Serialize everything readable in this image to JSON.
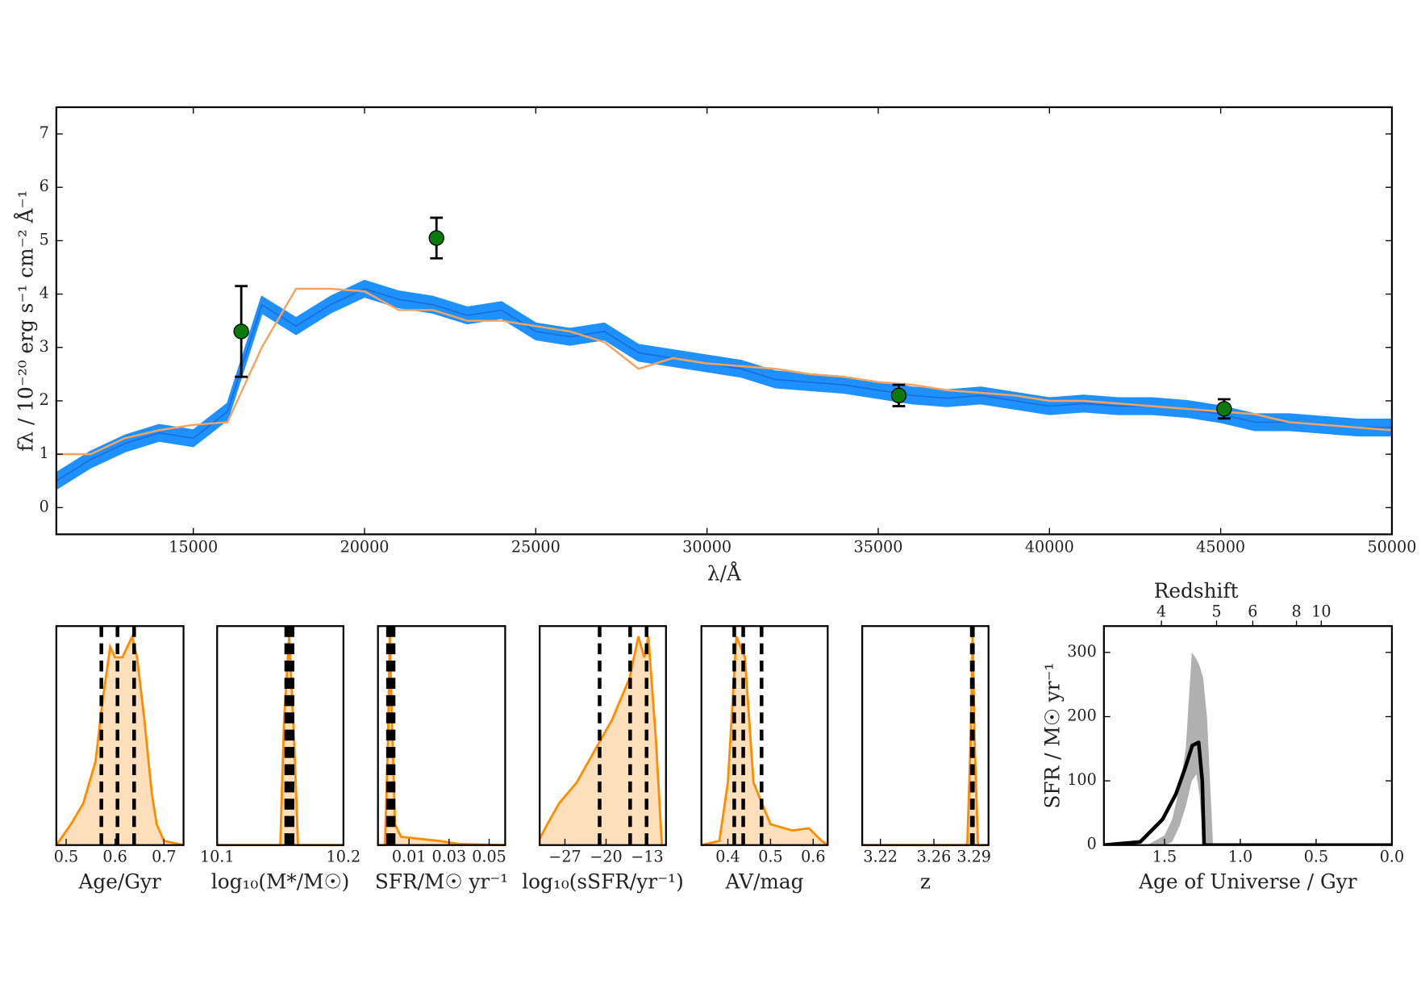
{
  "chart_data": [
    {
      "type": "line",
      "xlabel": "λ/Å",
      "ylabel": "fλ / 10⁻²⁰ erg s⁻¹ cm⁻² Å⁻¹",
      "xlim": [
        11000,
        50000
      ],
      "ylim": [
        -0.5,
        7.5
      ],
      "xticks": [
        15000,
        20000,
        25000,
        30000,
        35000,
        40000,
        45000,
        50000
      ],
      "yticks": [
        0,
        1,
        2,
        3,
        4,
        5,
        6,
        7
      ],
      "series": [
        {
          "type": "line",
          "color": "#1e90ff",
          "x": [
            11000,
            12000,
            13000,
            14000,
            15000,
            16000,
            17000,
            18000,
            19000,
            20000,
            21000,
            22000,
            23000,
            24000,
            25000,
            26000,
            27000,
            28000,
            29000,
            30000,
            31000,
            32000,
            33000,
            34000,
            35000,
            36000,
            37000,
            38000,
            39000,
            40000,
            41000,
            42000,
            43000,
            44000,
            45000,
            46000,
            47000,
            48000,
            49000,
            50000
          ],
          "values": [
            0.5,
            0.9,
            1.2,
            1.4,
            1.3,
            1.8,
            3.8,
            3.4,
            3.8,
            4.1,
            3.9,
            3.8,
            3.6,
            3.7,
            3.3,
            3.2,
            3.3,
            2.9,
            2.8,
            2.7,
            2.6,
            2.4,
            2.35,
            2.3,
            2.2,
            2.1,
            2.05,
            2.1,
            2.0,
            1.9,
            1.95,
            1.9,
            1.9,
            1.85,
            1.75,
            1.6,
            1.6,
            1.55,
            1.5,
            1.5
          ],
          "errors": [
            0.15,
            0.15,
            0.15,
            0.15,
            0.15,
            0.15,
            0.15,
            0.15,
            0.15,
            0.15,
            0.15,
            0.15,
            0.15,
            0.15,
            0.15,
            0.15,
            0.15,
            0.15,
            0.15,
            0.15,
            0.15,
            0.15,
            0.15,
            0.15,
            0.15,
            0.15,
            0.15,
            0.15,
            0.15,
            0.15,
            0.15,
            0.15,
            0.15,
            0.15,
            0.15,
            0.15,
            0.15,
            0.15,
            0.15,
            0.15
          ]
        },
        {
          "type": "line",
          "color": "#f4a460",
          "x": [
            11000,
            12000,
            13000,
            14000,
            15000,
            16000,
            17000,
            18000,
            19000,
            20000,
            21000,
            22000,
            23000,
            24000,
            25000,
            26000,
            27000,
            28000,
            29000,
            30000,
            31000,
            32000,
            33000,
            34000,
            35000,
            36000,
            37000,
            38000,
            39000,
            40000,
            41000,
            42000,
            43000,
            44000,
            45000,
            46000,
            47000,
            48000,
            49000,
            50000
          ],
          "values": [
            1.0,
            1.0,
            1.3,
            1.45,
            1.55,
            1.6,
            3.0,
            4.1,
            4.1,
            4.05,
            3.7,
            3.7,
            3.5,
            3.5,
            3.4,
            3.3,
            3.1,
            2.6,
            2.8,
            2.7,
            2.65,
            2.6,
            2.5,
            2.45,
            2.35,
            2.3,
            2.2,
            2.15,
            2.1,
            2.0,
            2.0,
            1.95,
            1.9,
            1.85,
            1.8,
            1.75,
            1.6,
            1.55,
            1.5,
            1.45
          ]
        },
        {
          "type": "errorbar",
          "color": "#0a7a0a",
          "x": [
            16400,
            22100,
            35600,
            45100
          ],
          "values": [
            3.3,
            5.05,
            2.1,
            1.85
          ],
          "errors": [
            0.85,
            0.38,
            0.2,
            0.18
          ]
        }
      ]
    },
    {
      "type": "area",
      "xlabel": "Age/Gyr",
      "xlim": [
        0.48,
        0.74
      ],
      "ylim": [
        0,
        1.05
      ],
      "xticks": [
        0.5,
        0.6,
        0.7
      ],
      "color": "#ff8c00",
      "x": [
        0.48,
        0.51,
        0.535,
        0.56,
        0.575,
        0.59,
        0.6,
        0.615,
        0.625,
        0.635,
        0.645,
        0.66,
        0.675,
        0.685,
        0.7,
        0.74
      ],
      "values": [
        0,
        0.1,
        0.2,
        0.4,
        0.7,
        0.95,
        0.9,
        0.9,
        0.95,
        1,
        0.9,
        0.6,
        0.25,
        0.1,
        0.02,
        0
      ],
      "vlines": [
        0.572,
        0.605,
        0.639
      ]
    },
    {
      "type": "area",
      "xlabel": "log₁₀(M*/M☉)",
      "xlim": [
        10.1,
        10.2
      ],
      "ylim": [
        0,
        1.05
      ],
      "xticks": [
        10.1,
        10.2
      ],
      "color": "#ff8c00",
      "x": [
        10.1,
        10.15,
        10.153,
        10.157,
        10.161,
        10.164,
        10.2
      ],
      "values": [
        0,
        0,
        0.6,
        1,
        0.5,
        0,
        0
      ],
      "vlines": [
        10.1547,
        10.1568,
        10.1597
      ]
    },
    {
      "type": "area",
      "xlabel": "SFR/M☉ yr⁻¹",
      "xlim": [
        -0.0055,
        0.058
      ],
      "ylim": [
        0,
        1.05
      ],
      "xticks": [
        0.01,
        0.03,
        0.05
      ],
      "color": "#ff8c00",
      "x": [
        -0.0055,
        -0.002,
        -0.0005,
        0.0004,
        0.0015,
        0.003,
        0.006,
        0.015,
        0.025,
        0.035,
        0.058
      ],
      "values": [
        0,
        0,
        0.5,
        1,
        0.6,
        0.1,
        0.04,
        0.03,
        0.02,
        0.005,
        0
      ],
      "vlines": [
        -0.0005,
        0.0009,
        0.0023
      ]
    },
    {
      "type": "area",
      "xlabel": "log₁₀(sSFR/yr⁻¹)",
      "xlim": [
        -31.3,
        -9.8
      ],
      "ylim": [
        0,
        1.05
      ],
      "xticks": [
        {
          "value": -27,
          "label": "−27"
        },
        {
          "value": -20,
          "label": "−20"
        },
        {
          "value": -13,
          "label": "−13"
        }
      ],
      "color": "#ff8c00",
      "x": [
        -31.3,
        -30,
        -28,
        -25,
        -22,
        -19,
        -16,
        -14.5,
        -13.5,
        -12.8,
        -11.5,
        -10.5,
        -9.8
      ],
      "values": [
        0.03,
        0.1,
        0.2,
        0.3,
        0.45,
        0.6,
        0.8,
        1,
        0.9,
        1,
        0.5,
        0,
        0
      ],
      "vlines": [
        -21.1,
        -15.9,
        -13.1
      ]
    },
    {
      "type": "area",
      "xlabel": "AV/mag",
      "xlim": [
        0.338,
        0.634
      ],
      "ylim": [
        0,
        1.05
      ],
      "xticks": [
        0.4,
        0.5,
        0.6
      ],
      "color": "#ff8c00",
      "x": [
        0.338,
        0.38,
        0.4,
        0.42,
        0.44,
        0.46,
        0.5,
        0.55,
        0.59,
        0.62,
        0.634
      ],
      "values": [
        0,
        0.02,
        0.3,
        1,
        0.9,
        0.3,
        0.1,
        0.07,
        0.08,
        0.02,
        0
      ],
      "vlines": [
        0.415,
        0.436,
        0.479
      ]
    },
    {
      "type": "area",
      "xlabel": "z",
      "xlim": [
        3.2064,
        3.3009
      ],
      "ylim": [
        0,
        1.05
      ],
      "xticks": [
        3.22,
        3.26,
        3.29
      ],
      "color": "#ff8c00",
      "x": [
        3.2064,
        3.285,
        3.2875,
        3.289,
        3.2905,
        3.293,
        3.3009
      ],
      "values": [
        0,
        0,
        0.5,
        1,
        0.5,
        0,
        0
      ],
      "vlines": [
        3.2884,
        3.2888,
        3.2892
      ]
    },
    {
      "type": "line",
      "xlabel": "Age of Universe / Gyr",
      "ylabel": "SFR / M☉ yr⁻¹",
      "x2label": "Redshift",
      "xlim": [
        1.9,
        0
      ],
      "ylim": [
        0,
        341
      ],
      "xticks": [
        1.5,
        {
          "value": 1.0,
          "label": "1.0"
        },
        0.5,
        {
          "value": 0.0,
          "label": "0.0"
        }
      ],
      "yticks": [
        0,
        100,
        200,
        300
      ],
      "x2ticks": [
        4,
        5,
        6,
        8,
        10
      ],
      "series": [
        {
          "type": "band",
          "color": "#b0b0b0",
          "x": [
            1.6,
            1.5,
            1.45,
            1.4,
            1.36,
            1.32,
            1.29,
            1.27,
            1.245,
            1.22,
            1.2,
            1.18
          ],
          "upper": [
            2,
            15,
            40,
            90,
            150,
            300,
            290,
            280,
            260,
            200,
            100,
            0
          ],
          "lower": [
            0,
            0,
            5,
            30,
            60,
            100,
            110,
            80,
            0,
            0,
            0,
            0
          ]
        },
        {
          "type": "line",
          "color": "#000000",
          "x": [
            1.9,
            1.66,
            1.513,
            1.424,
            1.364,
            1.317,
            1.275,
            1.251,
            1.239,
            0
          ],
          "values": [
            0,
            5,
            40,
            80,
            120,
            155,
            160,
            100,
            0,
            0
          ]
        }
      ]
    }
  ]
}
